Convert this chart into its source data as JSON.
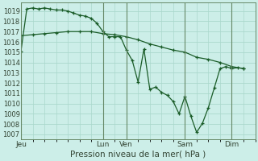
{
  "xlabel": "Pression niveau de la mer( hPa )",
  "ylim": [
    1006.5,
    1019.8
  ],
  "yticks": [
    1007,
    1008,
    1009,
    1010,
    1011,
    1012,
    1013,
    1014,
    1015,
    1016,
    1017,
    1018,
    1019
  ],
  "background_color": "#cceee8",
  "grid_color": "#aad8cc",
  "line_color": "#1a5c28",
  "vline_color": "#668866",
  "tick_label_color": "#334433",
  "xlabel_color": "#334433",
  "day_labels": [
    "Jeu",
    "Lun",
    "Ven",
    "Sam",
    "Dim"
  ],
  "day_x": [
    0,
    28,
    36,
    56,
    72
  ],
  "xlim": [
    0,
    80
  ],
  "series1_x": [
    0,
    2,
    4,
    6,
    8,
    10,
    12,
    14,
    16,
    18,
    20,
    22,
    24,
    26,
    28,
    30,
    32,
    34,
    36,
    38,
    40,
    42,
    44,
    46,
    48,
    50,
    52,
    54,
    56,
    58,
    60,
    62,
    64,
    66,
    68,
    70,
    72,
    74,
    76
  ],
  "series1_y": [
    1015.1,
    1019.2,
    1019.3,
    1019.2,
    1019.3,
    1019.2,
    1019.1,
    1019.1,
    1019.0,
    1018.8,
    1018.6,
    1018.5,
    1018.3,
    1017.8,
    1017.0,
    1016.5,
    1016.5,
    1016.5,
    1015.2,
    1014.2,
    1012.1,
    1015.3,
    1011.4,
    1011.6,
    1011.1,
    1010.8,
    1010.2,
    1009.0,
    1010.7,
    1008.8,
    1007.2,
    1008.1,
    1009.6,
    1011.5,
    1013.4,
    1013.6,
    1013.4,
    1013.5,
    1013.4
  ],
  "series2_x": [
    0,
    4,
    8,
    12,
    16,
    20,
    24,
    28,
    32,
    36,
    40,
    44,
    48,
    52,
    56,
    60,
    64,
    68,
    72,
    76
  ],
  "series2_y": [
    1016.6,
    1016.7,
    1016.8,
    1016.9,
    1017.0,
    1017.0,
    1017.0,
    1016.8,
    1016.7,
    1016.5,
    1016.2,
    1015.8,
    1015.5,
    1015.2,
    1015.0,
    1014.5,
    1014.3,
    1014.0,
    1013.6,
    1013.4
  ]
}
